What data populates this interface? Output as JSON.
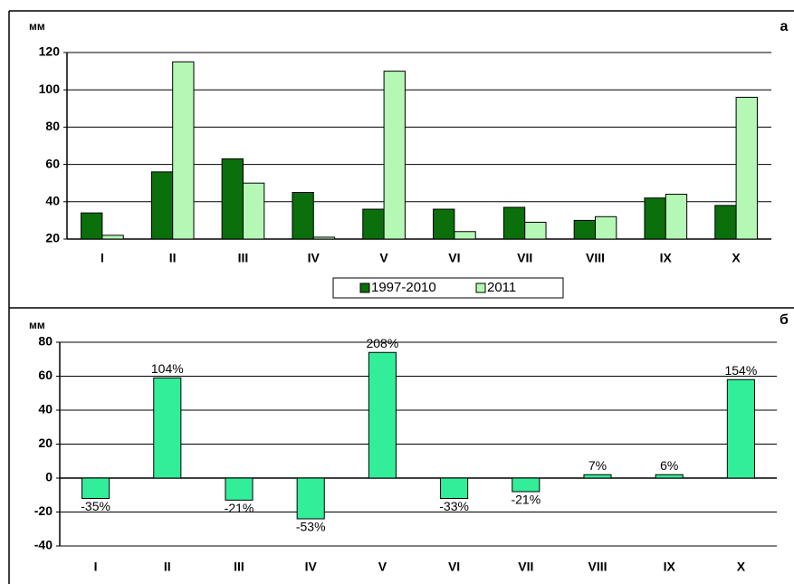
{
  "chart_data": [
    {
      "type": "bar",
      "y_label": "мм",
      "panel_label": "а",
      "categories": [
        "I",
        "II",
        "III",
        "IV",
        "V",
        "VI",
        "VII",
        "VIII",
        "IX",
        "X"
      ],
      "series": [
        {
          "name": "1997-2010",
          "color": "#0b6f0b",
          "values": [
            34,
            56,
            63,
            45,
            36,
            36,
            37,
            30,
            42,
            38
          ]
        },
        {
          "name": "2011",
          "color": "#b5f7b5",
          "values": [
            22,
            115,
            50,
            21,
            110,
            24,
            29,
            32,
            44,
            96
          ]
        }
      ],
      "ylim": [
        20,
        120
      ],
      "yticks": [
        20,
        40,
        60,
        80,
        100,
        120
      ],
      "grid": true,
      "legend": "bottom"
    },
    {
      "type": "bar",
      "y_label": "мм",
      "panel_label": "б",
      "categories": [
        "I",
        "II",
        "III",
        "IV",
        "V",
        "VI",
        "VII",
        "VIII",
        "IX",
        "X"
      ],
      "values": [
        -12,
        59,
        -13,
        -24,
        74,
        -12,
        -8,
        2,
        2,
        58
      ],
      "value_labels": [
        "-35%",
        "104%",
        "-21%",
        "-53%",
        "208%",
        "-33%",
        "-21%",
        "7%",
        "6%",
        "154%"
      ],
      "color": "#33ee99",
      "ylim": [
        -40,
        80
      ],
      "yticks": [
        -40,
        -20,
        0,
        20,
        40,
        60,
        80
      ],
      "grid": true
    }
  ]
}
